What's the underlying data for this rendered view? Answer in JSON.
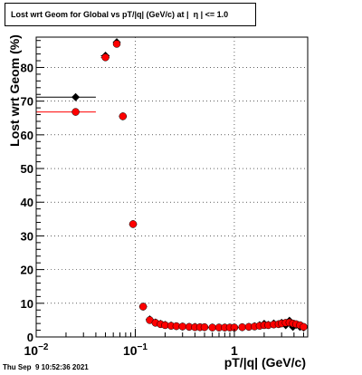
{
  "chart_data": {
    "type": "scatter",
    "title": "Lost wrt Geom for Global vs pT/|q| (GeV/c) at |  η | <= 1.0",
    "xlabel": "pT/|q| (GeV/c)",
    "ylabel": "Lost wrt Geom (%)",
    "xscale": "log",
    "xlim": [
      0.01,
      5.5
    ],
    "ylim": [
      0,
      89
    ],
    "grid": true,
    "x_tick_labels": [
      {
        "value": 0.01,
        "label": "10",
        "sup": "−2"
      },
      {
        "value": 0.1,
        "label": "10",
        "sup": "−1"
      },
      {
        "value": 1,
        "label": "1",
        "sup": ""
      }
    ],
    "y_ticks": [
      0,
      10,
      20,
      30,
      40,
      50,
      60,
      70,
      80
    ],
    "series": [
      {
        "marker": "diamond",
        "color": "#000000",
        "points": [
          {
            "x": 0.025,
            "y": 71.2,
            "xerr": [
              0.01,
              0.04
            ]
          },
          {
            "x": 0.05,
            "y": 83.5,
            "xerr": [
              0.045,
              0.055
            ]
          },
          {
            "x": 0.065,
            "y": 87.5,
            "xerr": [
              0.06,
              0.07
            ]
          },
          {
            "x": 0.075,
            "y": 65.5
          },
          {
            "x": 0.095,
            "y": 33.5
          },
          {
            "x": 0.12,
            "y": 9.0
          },
          {
            "x": 0.14,
            "y": 5.2
          },
          {
            "x": 0.16,
            "y": 4.3
          },
          {
            "x": 0.18,
            "y": 3.9
          },
          {
            "x": 0.2,
            "y": 3.6
          },
          {
            "x": 0.23,
            "y": 3.4
          },
          {
            "x": 0.26,
            "y": 3.2
          },
          {
            "x": 0.3,
            "y": 3.1
          },
          {
            "x": 0.35,
            "y": 3.0
          },
          {
            "x": 0.4,
            "y": 3.0
          },
          {
            "x": 0.45,
            "y": 2.9
          },
          {
            "x": 0.5,
            "y": 2.9
          },
          {
            "x": 0.6,
            "y": 2.8
          },
          {
            "x": 0.7,
            "y": 2.8
          },
          {
            "x": 0.8,
            "y": 2.8
          },
          {
            "x": 0.9,
            "y": 2.8
          },
          {
            "x": 1.0,
            "y": 2.8
          },
          {
            "x": 1.2,
            "y": 2.9
          },
          {
            "x": 1.4,
            "y": 3.0
          },
          {
            "x": 1.6,
            "y": 3.2
          },
          {
            "x": 1.8,
            "y": 3.5
          },
          {
            "x": 2.0,
            "y": 3.9
          },
          {
            "x": 2.2,
            "y": 3.6
          },
          {
            "x": 2.5,
            "y": 4.0
          },
          {
            "x": 2.8,
            "y": 3.8
          },
          {
            "x": 3.0,
            "y": 4.2
          },
          {
            "x": 3.3,
            "y": 3.5
          },
          {
            "x": 3.6,
            "y": 4.8
          },
          {
            "x": 3.9,
            "y": 3.0
          },
          {
            "x": 4.2,
            "y": 3.6
          },
          {
            "x": 4.6,
            "y": 3.0
          },
          {
            "x": 5.0,
            "y": 2.8
          }
        ]
      },
      {
        "marker": "circle",
        "color": "#ff0000",
        "points": [
          {
            "x": 0.025,
            "y": 66.8,
            "xerr": [
              0.01,
              0.04
            ]
          },
          {
            "x": 0.05,
            "y": 83.0,
            "xerr": [
              0.045,
              0.055
            ]
          },
          {
            "x": 0.065,
            "y": 87.0,
            "xerr": [
              0.06,
              0.07
            ]
          },
          {
            "x": 0.075,
            "y": 65.5
          },
          {
            "x": 0.095,
            "y": 33.5
          },
          {
            "x": 0.12,
            "y": 9.0
          },
          {
            "x": 0.14,
            "y": 5.0
          },
          {
            "x": 0.16,
            "y": 4.2
          },
          {
            "x": 0.18,
            "y": 3.8
          },
          {
            "x": 0.2,
            "y": 3.5
          },
          {
            "x": 0.23,
            "y": 3.3
          },
          {
            "x": 0.26,
            "y": 3.2
          },
          {
            "x": 0.3,
            "y": 3.1
          },
          {
            "x": 0.35,
            "y": 3.0
          },
          {
            "x": 0.4,
            "y": 2.9
          },
          {
            "x": 0.45,
            "y": 2.9
          },
          {
            "x": 0.5,
            "y": 2.9
          },
          {
            "x": 0.6,
            "y": 2.8
          },
          {
            "x": 0.7,
            "y": 2.8
          },
          {
            "x": 0.8,
            "y": 2.8
          },
          {
            "x": 0.9,
            "y": 2.8
          },
          {
            "x": 1.0,
            "y": 2.8
          },
          {
            "x": 1.2,
            "y": 2.9
          },
          {
            "x": 1.4,
            "y": 3.0
          },
          {
            "x": 1.6,
            "y": 3.1
          },
          {
            "x": 1.8,
            "y": 3.3
          },
          {
            "x": 2.0,
            "y": 3.5
          },
          {
            "x": 2.2,
            "y": 3.5
          },
          {
            "x": 2.5,
            "y": 3.7
          },
          {
            "x": 2.8,
            "y": 3.8
          },
          {
            "x": 3.0,
            "y": 4.0
          },
          {
            "x": 3.3,
            "y": 4.2
          },
          {
            "x": 3.6,
            "y": 4.3
          },
          {
            "x": 3.9,
            "y": 4.0
          },
          {
            "x": 4.2,
            "y": 3.8
          },
          {
            "x": 4.6,
            "y": 3.5
          },
          {
            "x": 5.0,
            "y": 3.0
          }
        ]
      }
    ]
  },
  "timestamp": "Thu Sep  9 10:52:36 2021"
}
